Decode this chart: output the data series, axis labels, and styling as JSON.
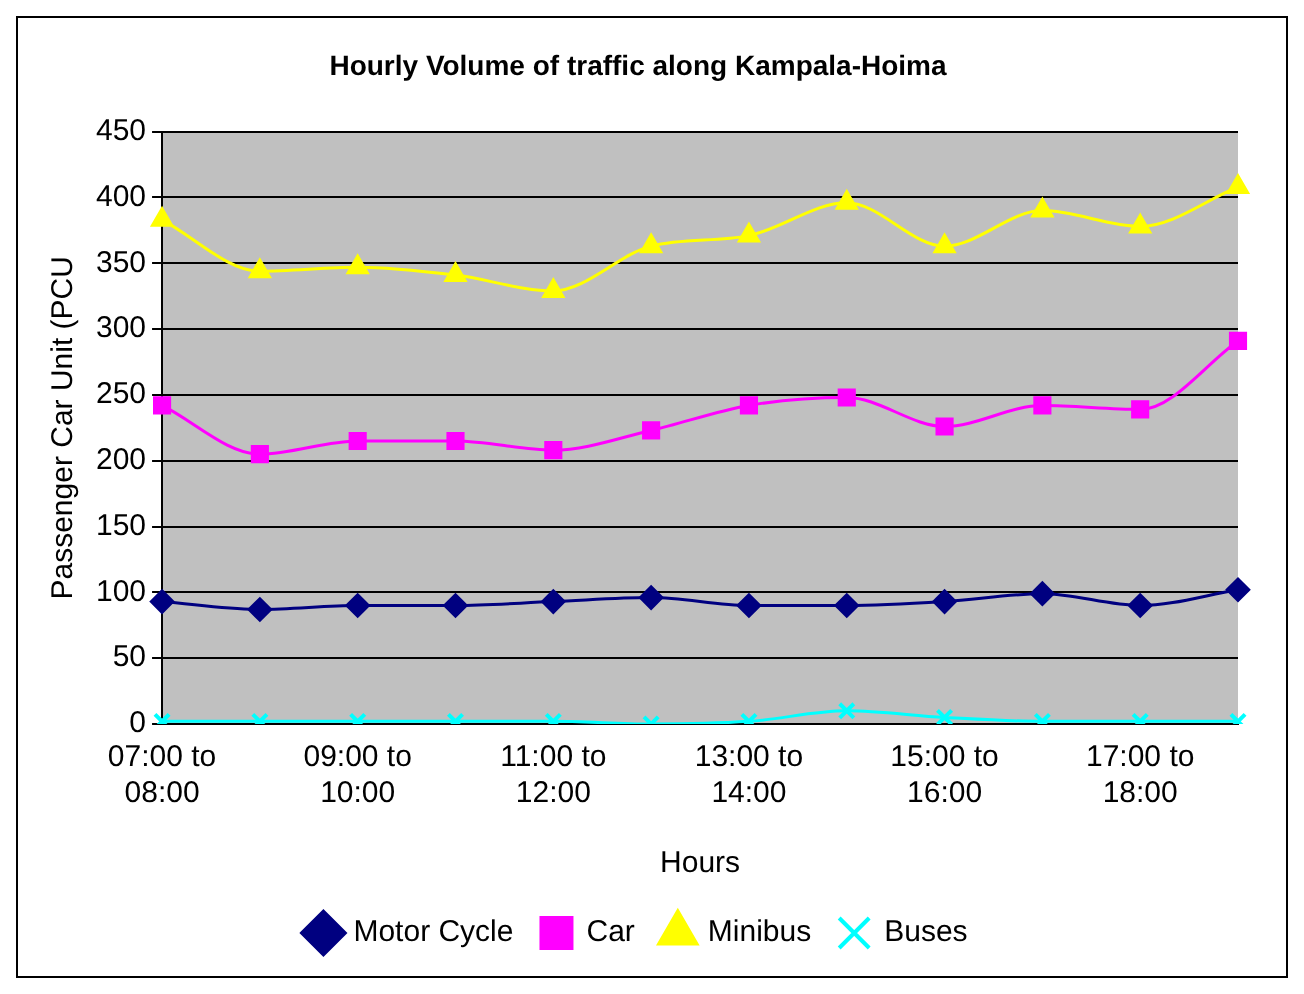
{
  "chart_data": {
    "type": "line",
    "title": "Hourly Volume of traffic along Kampala-Hoima",
    "xlabel": "Hours",
    "ylabel": "Passenger Car Unit (PCU",
    "categories": [
      "07:00 to 08:00",
      null,
      "09:00 to 10:00",
      null,
      "11:00 to 12:00",
      null,
      "13:00 to 14:00",
      null,
      "15:00 to 16:00",
      null,
      "17:00 to 18:00",
      null
    ],
    "series": [
      {
        "name": "Motor Cycle",
        "color": "#000080",
        "marker": "diamond",
        "values": [
          93,
          87,
          90,
          90,
          93,
          96,
          90,
          90,
          93,
          99,
          90,
          102
        ]
      },
      {
        "name": "Car",
        "color": "#ff00ff",
        "marker": "square",
        "values": [
          242,
          205,
          215,
          215,
          208,
          223,
          242,
          248,
          226,
          242,
          239,
          291
        ]
      },
      {
        "name": "Minibus",
        "color": "#ffff00",
        "marker": "triangle",
        "values": [
          383,
          344,
          347,
          341,
          329,
          363,
          371,
          396,
          363,
          390,
          378,
          408
        ]
      },
      {
        "name": "Buses",
        "color": "#00ffff",
        "marker": "cross",
        "values": [
          2,
          2,
          2,
          2,
          2,
          0,
          2,
          10,
          5,
          2,
          2,
          2
        ]
      }
    ],
    "ylim": [
      0,
      450
    ],
    "yticks": [
      0,
      50,
      100,
      150,
      200,
      250,
      300,
      350,
      400,
      450
    ],
    "grid": "y",
    "legend": "bottom"
  }
}
